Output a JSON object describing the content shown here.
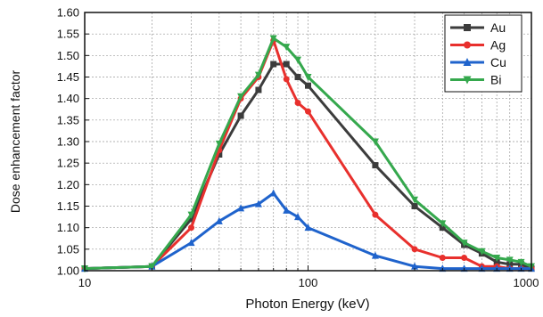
{
  "chart_data": {
    "type": "line",
    "xlabel": "Photon Energy (keV)",
    "ylabel": "Dose enhancement factor",
    "x_scale": "log",
    "xlim": [
      10,
      1000
    ],
    "ylim": [
      1.0,
      1.6
    ],
    "x_ticks": [
      10,
      100,
      1000
    ],
    "x_tick_labels": [
      "10",
      "100",
      "1000"
    ],
    "y_ticks": [
      1.0,
      1.05,
      1.1,
      1.15,
      1.2,
      1.25,
      1.3,
      1.35,
      1.4,
      1.45,
      1.5,
      1.55,
      1.6
    ],
    "y_tick_labels": [
      "1.00",
      "1.05",
      "1.10",
      "1.15",
      "1.20",
      "1.25",
      "1.30",
      "1.35",
      "1.40",
      "1.45",
      "1.50",
      "1.55",
      "1.60"
    ],
    "grid": true,
    "legend_position": "top-right",
    "series": [
      {
        "name": "Au",
        "color": "#3c3c3c",
        "marker": "square",
        "x": [
          10,
          20,
          30,
          40,
          50,
          60,
          70,
          80,
          90,
          100,
          200,
          300,
          400,
          500,
          600,
          700,
          800,
          900,
          1000
        ],
        "y": [
          1.005,
          1.01,
          1.12,
          1.27,
          1.36,
          1.42,
          1.48,
          1.48,
          1.45,
          1.43,
          1.245,
          1.15,
          1.1,
          1.06,
          1.04,
          1.02,
          1.015,
          1.015,
          1.005
        ]
      },
      {
        "name": "Ag",
        "color": "#e8302d",
        "marker": "circle",
        "x": [
          10,
          20,
          30,
          40,
          50,
          60,
          70,
          80,
          90,
          100,
          200,
          300,
          400,
          500,
          600,
          700,
          800,
          900,
          1000
        ],
        "y": [
          1.005,
          1.01,
          1.1,
          1.28,
          1.4,
          1.45,
          1.535,
          1.445,
          1.39,
          1.37,
          1.13,
          1.05,
          1.03,
          1.03,
          1.01,
          1.01,
          1.005,
          1.005,
          1.005
        ]
      },
      {
        "name": "Cu",
        "color": "#1f63cc",
        "marker": "triangle-up",
        "x": [
          10,
          20,
          30,
          40,
          50,
          60,
          70,
          80,
          90,
          100,
          200,
          300,
          400,
          500,
          600,
          700,
          800,
          900,
          1000
        ],
        "y": [
          1.005,
          1.01,
          1.065,
          1.115,
          1.145,
          1.155,
          1.18,
          1.14,
          1.125,
          1.1,
          1.035,
          1.01,
          1.005,
          1.005,
          1.005,
          1.005,
          1.005,
          1.005,
          1.005
        ]
      },
      {
        "name": "Bi",
        "color": "#35a84d",
        "marker": "triangle-down",
        "x": [
          10,
          20,
          30,
          40,
          50,
          60,
          70,
          80,
          90,
          100,
          200,
          300,
          400,
          500,
          600,
          700,
          800,
          900,
          1000
        ],
        "y": [
          1.005,
          1.01,
          1.13,
          1.295,
          1.405,
          1.455,
          1.54,
          1.52,
          1.49,
          1.45,
          1.3,
          1.165,
          1.11,
          1.065,
          1.045,
          1.03,
          1.025,
          1.02,
          1.01
        ]
      }
    ]
  }
}
